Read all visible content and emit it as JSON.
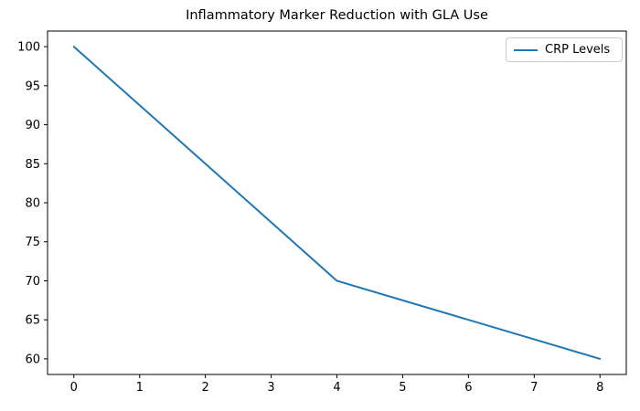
{
  "figure": {
    "background_color": "#ffffff",
    "axes_frame_color": "#000000",
    "tick_label_color": "#000000"
  },
  "legend": {
    "entries": [
      {
        "label": "CRP Levels",
        "color": "#1f77b4"
      }
    ],
    "border_color": "#cccccc",
    "position": "upper right"
  },
  "chart_data": {
    "type": "line",
    "title": "Inflammatory Marker Reduction with GLA Use",
    "xlabel": "",
    "ylabel": "",
    "series": [
      {
        "name": "CRP Levels",
        "color": "#1f77b4",
        "x": [
          0,
          4,
          8
        ],
        "values": [
          100,
          70,
          60
        ]
      }
    ],
    "xticks": [
      0,
      1,
      2,
      3,
      4,
      5,
      6,
      7,
      8
    ],
    "yticks": [
      60,
      65,
      70,
      75,
      80,
      85,
      90,
      95,
      100
    ],
    "xlim": [
      -0.4,
      8.4
    ],
    "ylim": [
      58,
      102
    ],
    "grid": false,
    "legend_position": "upper right"
  }
}
